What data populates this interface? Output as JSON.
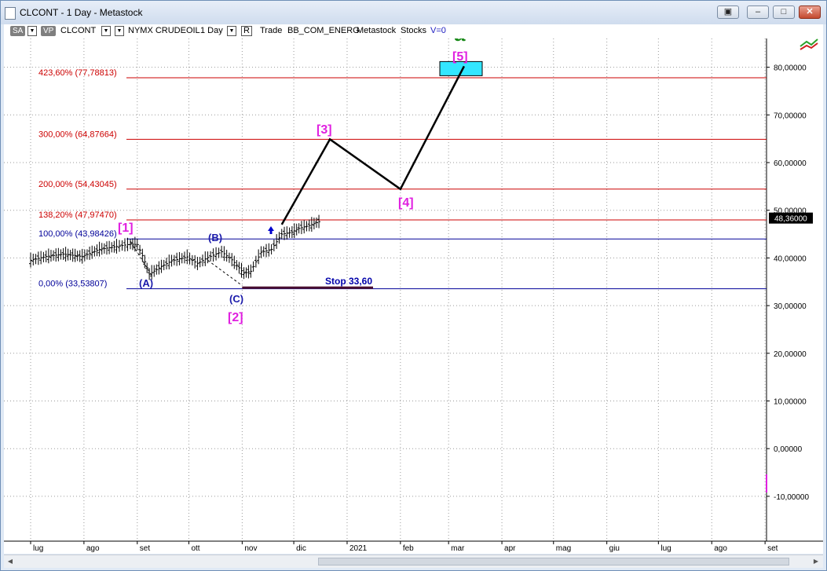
{
  "window": {
    "title": "CLCONT - 1 Day - Metastock",
    "buttons": {
      "restore_glyph": "▣",
      "minimize_glyph": "–",
      "maximize_glyph": "□",
      "close_glyph": "✕"
    }
  },
  "toolbar": {
    "badge_sa": "SA",
    "badge_vp": "VP",
    "symbol": "CLCONT",
    "exchange": "NYMX CRUDEOIL",
    "interval": "1 Day",
    "r_label": "R",
    "trade": "Trade",
    "group": "BB_COM_ENERG",
    "source": "Metastock",
    "kind": "Stocks",
    "volume": "V=0",
    "dropdown_glyph": "▼",
    "tool_icon": "trend-lines-icon"
  },
  "colors": {
    "fib_red": "#cc0000",
    "fib_blue": "#000099",
    "wave_magenta": "#e020e0",
    "wave_green": "#1a8a1a",
    "target_box": "#33e6ff",
    "stop_line": "#4a1030",
    "price_box": "#000000"
  },
  "chart_data": {
    "type": "line",
    "y_axis": {
      "range": [
        -13,
        88
      ],
      "ticks": [
        "80,00000",
        "70,00000",
        "60,00000",
        "50,00000",
        "40,00000",
        "30,00000",
        "20,00000",
        "10,00000",
        "0,00000",
        "-10,00000"
      ]
    },
    "x_axis": {
      "ticks": [
        "lug",
        "ago",
        "set",
        "ott",
        "nov",
        "dic",
        "2021",
        "feb",
        "mar",
        "apr",
        "mag",
        "giu",
        "lug",
        "ago",
        "set"
      ]
    },
    "grid": true,
    "last_price": "48,36000",
    "fib_levels": [
      {
        "label": "423,60% (77,78813)",
        "value": 77.78813,
        "color": "red"
      },
      {
        "label": "300,00% (64,87664)",
        "value": 64.87664,
        "color": "red"
      },
      {
        "label": "200,00% (54,43045)",
        "value": 54.43045,
        "color": "red"
      },
      {
        "label": "138,20% (47,97470)",
        "value": 47.9747,
        "color": "red"
      },
      {
        "label": "100,00% (43,98426)",
        "value": 43.98426,
        "color": "blue"
      },
      {
        "label": "0,00% (33,53807)",
        "value": 33.53807,
        "color": "blue"
      }
    ],
    "stop": {
      "label": "Stop 33,60",
      "value": 33.6
    },
    "projection": {
      "points": [
        {
          "x": "2020-11-24",
          "y": 47.0
        },
        {
          "x": "2020-12-22",
          "y": 64.88
        },
        {
          "x": "2021-02-01",
          "y": 54.43
        },
        {
          "x": "2021-03-10",
          "y": 80.2
        }
      ]
    },
    "wave_labels": {
      "magenta": [
        "[1]",
        "[2]",
        "[3]",
        "[4]",
        "[5]"
      ],
      "blue": [
        "(A)",
        "(B)",
        "(C)"
      ],
      "green": [
        "a"
      ]
    },
    "price_series": {
      "x": [
        "2020-07-01",
        "2020-07-10",
        "2020-07-20",
        "2020-07-31",
        "2020-08-10",
        "2020-08-20",
        "2020-08-28",
        "2020-09-01",
        "2020-09-04",
        "2020-09-08",
        "2020-09-15",
        "2020-09-21",
        "2020-09-30",
        "2020-10-06",
        "2020-10-12",
        "2020-10-20",
        "2020-10-26",
        "2020-11-02",
        "2020-11-06",
        "2020-11-12",
        "2020-11-18",
        "2020-11-24",
        "2020-11-30",
        "2020-12-04",
        "2020-12-10",
        "2020-12-17"
      ],
      "close": [
        39.5,
        40.3,
        40.8,
        40.3,
        41.8,
        42.4,
        42.9,
        42.8,
        40.5,
        36.6,
        38.2,
        39.4,
        40.2,
        38.8,
        40.1,
        41.3,
        39.6,
        36.8,
        37.2,
        41.2,
        41.8,
        45.0,
        45.4,
        46.2,
        46.8,
        47.8
      ]
    }
  }
}
